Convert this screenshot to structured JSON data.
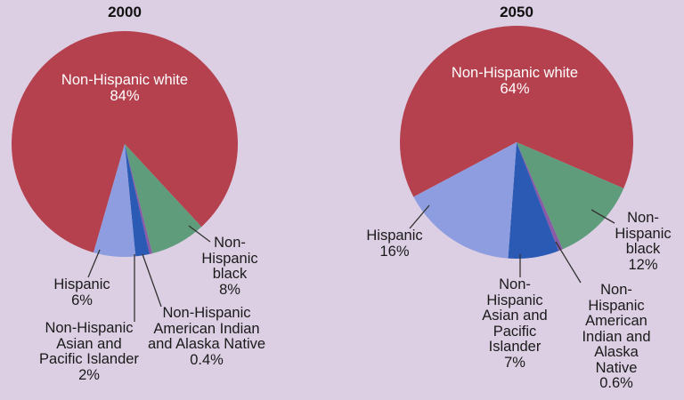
{
  "chart_data": [
    {
      "type": "pie",
      "title": "2000",
      "labels": [
        "Non-Hispanic white",
        "Non-Hispanic black",
        "Non-Hispanic American Indian and Alaska Native",
        "Non-Hispanic Asian and Pacific Islander",
        "Hispanic"
      ],
      "values": [
        84,
        8,
        0.4,
        2,
        6
      ],
      "value_labels": [
        "84%",
        "8%",
        "0.4%",
        "2%",
        "6%"
      ],
      "colors": [
        "#b5404e",
        "#5f9c7b",
        "#8a5aa6",
        "#2b5ab5",
        "#8d9ddf"
      ]
    },
    {
      "type": "pie",
      "title": "2050",
      "labels": [
        "Non-Hispanic white",
        "Non-Hispanic black",
        "Non-Hispanic American Indian and Alaska Native",
        "Non-Hispanic Asian and Pacific Islander",
        "Hispanic"
      ],
      "values": [
        64,
        12,
        0.6,
        7,
        16
      ],
      "value_labels": [
        "64%",
        "12%",
        "0.6%",
        "7%",
        "16%"
      ],
      "colors": [
        "#b5404e",
        "#5f9c7b",
        "#8a5aa6",
        "#2b5ab5",
        "#8d9ddf"
      ]
    }
  ]
}
